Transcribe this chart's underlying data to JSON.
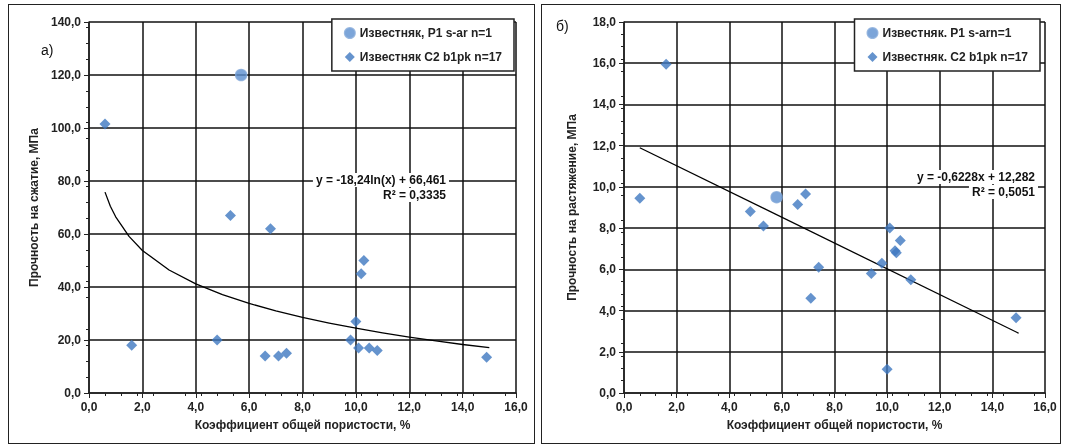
{
  "chart_data": [
    {
      "type": "scatter",
      "title": "а)",
      "xlabel": "Коэффициент общей пористости, %",
      "ylabel": "Прочность на сжатие, МПа",
      "xlim": [
        0,
        16
      ],
      "ylim": [
        0,
        140
      ],
      "xticks": [
        {
          "value": 0,
          "label": "0,0"
        },
        {
          "value": 2,
          "label": "2,0"
        },
        {
          "value": 4,
          "label": "4,0"
        },
        {
          "value": 6,
          "label": "6,0"
        },
        {
          "value": 8,
          "label": "8,0"
        },
        {
          "value": 10,
          "label": "10,0"
        },
        {
          "value": 12,
          "label": "12,0"
        },
        {
          "value": 14,
          "label": "14,0"
        },
        {
          "value": 16,
          "label": "16,0"
        }
      ],
      "yticks": [
        {
          "value": 0,
          "label": "0,0"
        },
        {
          "value": 20,
          "label": "20,0"
        },
        {
          "value": 40,
          "label": "40,0"
        },
        {
          "value": 60,
          "label": "60,0"
        },
        {
          "value": 80,
          "label": "80,0"
        },
        {
          "value": 100,
          "label": "100,0"
        },
        {
          "value": 120,
          "label": "120,0"
        },
        {
          "value": 140,
          "label": "140,0"
        }
      ],
      "grid": true,
      "legend": "top right",
      "annotations": [
        "y = -18,24ln(x) + 66,461",
        "R² = 0,3335"
      ],
      "series": [
        {
          "name": "Известняк, P1 s-ar n=1",
          "marker": "circle",
          "color": "#5b8fd0",
          "x": [
            5.7
          ],
          "values": [
            120
          ]
        },
        {
          "name": "Известняк C2 b1pk n=17",
          "marker": "diamond",
          "color": "#3f78c0",
          "x": [
            0.6,
            1.6,
            4.8,
            5.3,
            6.8,
            6.6,
            7.1,
            7.4,
            9.8,
            10.0,
            10.1,
            10.2,
            10.3,
            10.5,
            10.8,
            14.9
          ],
          "values": [
            101.5,
            18,
            20,
            67,
            62,
            14,
            14,
            15,
            20,
            27,
            17,
            45,
            50,
            17,
            16,
            13.5
          ]
        },
        {
          "type": "line",
          "marker": "none",
          "color": "#000000",
          "x": [
            0.6,
            0.8,
            1,
            1.5,
            2,
            3,
            4,
            5,
            6,
            7,
            8,
            9,
            10,
            11,
            12,
            13,
            14,
            15
          ],
          "values": [
            75.8,
            70.5,
            66.5,
            59.1,
            53.8,
            46.4,
            41.2,
            37.1,
            33.8,
            31.0,
            28.5,
            26.4,
            24.5,
            22.7,
            21.1,
            19.7,
            18.3,
            17.1
          ]
        }
      ]
    },
    {
      "type": "scatter",
      "title": "б)",
      "xlabel": "Коэффициент общей пористости, %",
      "ylabel": "Прочность на растяжение, МПа",
      "xlim": [
        0,
        16
      ],
      "ylim": [
        0,
        18
      ],
      "xticks": [
        {
          "value": 0,
          "label": "0,0"
        },
        {
          "value": 2,
          "label": "2,0"
        },
        {
          "value": 4,
          "label": "4,0"
        },
        {
          "value": 6,
          "label": "6,0"
        },
        {
          "value": 8,
          "label": "8,0"
        },
        {
          "value": 10,
          "label": "10,0"
        },
        {
          "value": 12,
          "label": "12,0"
        },
        {
          "value": 14,
          "label": "14,0"
        },
        {
          "value": 16,
          "label": "16,0"
        }
      ],
      "yticks": [
        {
          "value": 0,
          "label": "0,0"
        },
        {
          "value": 2,
          "label": "2,0"
        },
        {
          "value": 4,
          "label": "4,0"
        },
        {
          "value": 6,
          "label": "6,0"
        },
        {
          "value": 8,
          "label": "8,0"
        },
        {
          "value": 10,
          "label": "10,0"
        },
        {
          "value": 12,
          "label": "12,0"
        },
        {
          "value": 14,
          "label": "14,0"
        },
        {
          "value": 16,
          "label": "16,0"
        },
        {
          "value": 18,
          "label": "18,0"
        }
      ],
      "grid": true,
      "legend": "top right",
      "annotations": [
        "y = -0,6228x + 12,282",
        "R² = 0,5051"
      ],
      "series": [
        {
          "name": "Известняк. P1 s-arn=1",
          "marker": "circle",
          "color": "#5b8fd0",
          "x": [
            5.8
          ],
          "values": [
            9.5
          ]
        },
        {
          "name": "Известняк. C2 b1pk n=17",
          "marker": "diamond",
          "color": "#3f78c0",
          "x": [
            0.6,
            1.6,
            4.8,
            5.3,
            6.6,
            6.9,
            7.4,
            7.1,
            9.4,
            9.8,
            10.0,
            10.1,
            10.3,
            10.35,
            10.5,
            10.9,
            14.9
          ],
          "values": [
            9.45,
            15.95,
            8.8,
            8.1,
            9.15,
            9.65,
            6.1,
            4.6,
            5.8,
            6.3,
            1.15,
            8.0,
            6.9,
            6.8,
            7.4,
            5.5,
            3.65
          ]
        },
        {
          "type": "line",
          "marker": "none",
          "color": "#000000",
          "x": [
            0.6,
            15
          ],
          "values": [
            11.9,
            2.9
          ]
        }
      ]
    }
  ]
}
